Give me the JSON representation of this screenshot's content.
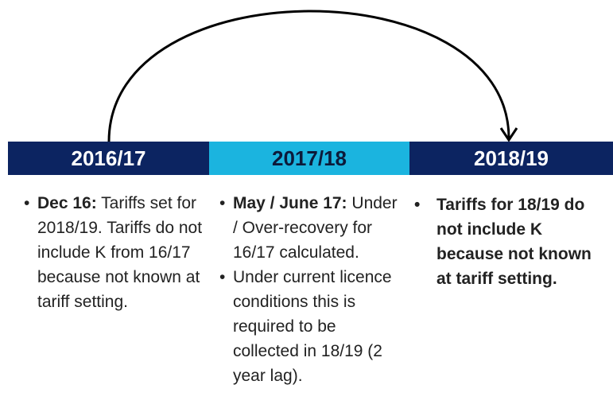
{
  "timeline": {
    "periods": [
      {
        "label": "2016/17",
        "color": "#0c2461",
        "text_color": "#ffffff"
      },
      {
        "label": "2017/18",
        "color": "#1bb4df",
        "text_color": "#0c1a3a"
      },
      {
        "label": "2018/19",
        "color": "#0c2461",
        "text_color": "#ffffff"
      }
    ]
  },
  "columns": [
    {
      "bullets": [
        {
          "bold": "Dec 16:",
          "text": " Tariffs set for 2018/19. Tariffs do not include K from 16/17 because not known at tariff setting."
        }
      ]
    },
    {
      "bullets": [
        {
          "bold": "May / June 17:",
          "text": " Under / Over-recovery for 16/17 calculated."
        },
        {
          "text": "Under current licence conditions this is required to be collected in 18/19 (2 year lag)."
        }
      ]
    },
    {
      "bullets": [
        {
          "bold": "Tariffs for 18/19 do not include K because not known at tariff setting."
        }
      ]
    }
  ]
}
